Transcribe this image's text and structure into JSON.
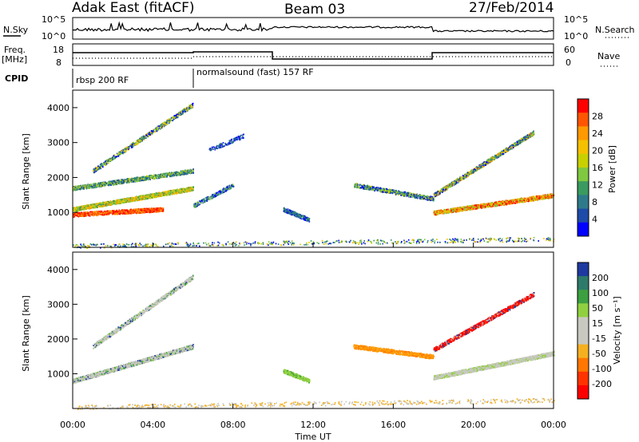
{
  "header": {
    "station": "Adak East (fitACF)",
    "beam": "Beam 03",
    "date": "27/Feb/2014"
  },
  "panels": {
    "nsky_label": "N.Sky",
    "nsearch_label": "N.Search",
    "freq_label_line1": "Freq.",
    "freq_label_line2": "[MHz]",
    "nave_label": "Nave",
    "cpid_label": "CPID",
    "nsky_ticks": [
      "10^5",
      "10^0"
    ],
    "freq_ticks": [
      "18",
      "8"
    ],
    "nave_ticks": [
      "60",
      "0"
    ],
    "cpid_segments": [
      {
        "label": "rbsp 200 RF",
        "start": 0,
        "end": 6
      },
      {
        "label": "normalsound (fast) 157 RF",
        "start": 6,
        "end": 24
      }
    ]
  },
  "chart_data": [
    {
      "type": "heatmap",
      "name": "power",
      "ylabel": "Slant Range [km]",
      "ylim": [
        0,
        4500
      ],
      "yticks": [
        "1000",
        "2000",
        "3000",
        "4000"
      ],
      "colorbar_label": "Power [dB]",
      "colorbar_ticks": [
        "28",
        "24",
        "20",
        "16",
        "12",
        "8",
        "4"
      ],
      "colorbar_colors": [
        "#ff0000",
        "#ff5500",
        "#ff9900",
        "#f5c000",
        "#c8d000",
        "#7fc840",
        "#3a9a60",
        "#2e7a8a",
        "#1e4aa8",
        "#0000ff"
      ]
    },
    {
      "type": "heatmap",
      "name": "velocity",
      "ylabel": "Slant Range [km]",
      "ylim": [
        0,
        4500
      ],
      "yticks": [
        "1000",
        "2000",
        "3000",
        "4000"
      ],
      "colorbar_label": "Velocity [m s⁻¹]",
      "colorbar_ticks": [
        "200",
        "100",
        "50",
        "15",
        "-15",
        "-50",
        "-100",
        "-200"
      ],
      "colorbar_colors": [
        "#1e3aa0",
        "#2e7a6a",
        "#3ca040",
        "#90d040",
        "#c8c8c0",
        "#c8c8c0",
        "#f5b020",
        "#ff7700",
        "#ff3300",
        "#ff0000"
      ]
    }
  ],
  "x_axis": {
    "label": "Time UT",
    "range": [
      0,
      24
    ],
    "ticks": [
      "00:00",
      "04:00",
      "08:00",
      "12:00",
      "16:00",
      "20:00",
      "00:00"
    ]
  }
}
